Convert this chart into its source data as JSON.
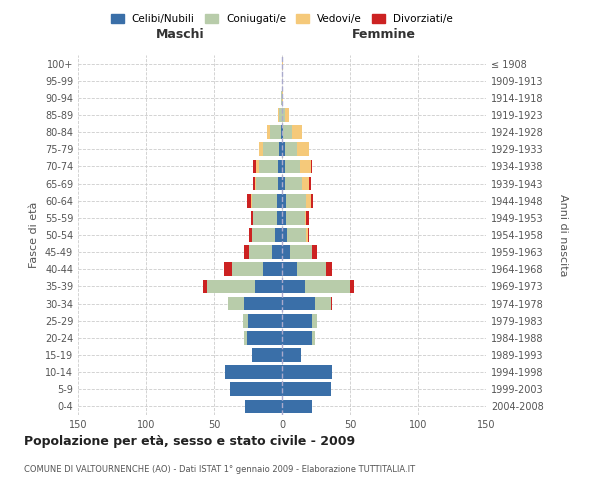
{
  "age_groups": [
    "0-4",
    "5-9",
    "10-14",
    "15-19",
    "20-24",
    "25-29",
    "30-34",
    "35-39",
    "40-44",
    "45-49",
    "50-54",
    "55-59",
    "60-64",
    "65-69",
    "70-74",
    "75-79",
    "80-84",
    "85-89",
    "90-94",
    "95-99",
    "100+"
  ],
  "birth_years": [
    "2004-2008",
    "1999-2003",
    "1994-1998",
    "1989-1993",
    "1984-1988",
    "1979-1983",
    "1974-1978",
    "1969-1973",
    "1964-1968",
    "1959-1963",
    "1954-1958",
    "1949-1953",
    "1944-1948",
    "1939-1943",
    "1934-1938",
    "1929-1933",
    "1924-1928",
    "1919-1923",
    "1914-1918",
    "1909-1913",
    "≤ 1908"
  ],
  "male": {
    "celibi": [
      27,
      38,
      42,
      22,
      26,
      25,
      28,
      20,
      14,
      7,
      5,
      4,
      4,
      3,
      3,
      2,
      1,
      0,
      0,
      0,
      0
    ],
    "coniugati": [
      0,
      0,
      0,
      0,
      2,
      4,
      12,
      35,
      23,
      17,
      17,
      17,
      18,
      16,
      14,
      12,
      8,
      2,
      1,
      0,
      0
    ],
    "vedovi": [
      0,
      0,
      0,
      0,
      0,
      0,
      0,
      0,
      0,
      0,
      0,
      0,
      1,
      1,
      2,
      3,
      2,
      1,
      0,
      0,
      0
    ],
    "divorziati": [
      0,
      0,
      0,
      0,
      0,
      0,
      0,
      3,
      6,
      4,
      2,
      2,
      3,
      1,
      2,
      0,
      0,
      0,
      0,
      0,
      0
    ]
  },
  "female": {
    "nubili": [
      22,
      36,
      37,
      14,
      22,
      22,
      24,
      17,
      11,
      6,
      4,
      3,
      3,
      2,
      2,
      2,
      1,
      0,
      0,
      0,
      0
    ],
    "coniugate": [
      0,
      0,
      0,
      0,
      2,
      4,
      12,
      33,
      21,
      16,
      14,
      14,
      15,
      13,
      11,
      9,
      6,
      2,
      0,
      0,
      0
    ],
    "vedove": [
      0,
      0,
      0,
      0,
      0,
      0,
      0,
      0,
      0,
      0,
      1,
      1,
      3,
      5,
      8,
      9,
      8,
      3,
      1,
      0,
      1
    ],
    "divorziate": [
      0,
      0,
      0,
      0,
      0,
      0,
      1,
      3,
      5,
      4,
      1,
      2,
      2,
      1,
      1,
      0,
      0,
      0,
      0,
      0,
      0
    ]
  },
  "color_celibi": "#3a6fa8",
  "color_coniugati": "#b8ccaa",
  "color_vedovi": "#f5c97a",
  "color_divorziati": "#cc2222",
  "title": "Popolazione per età, sesso e stato civile - 2009",
  "subtitle": "COMUNE DI VALTOURNENCHE (AO) - Dati ISTAT 1° gennaio 2009 - Elaborazione TUTTITALIA.IT",
  "xlabel_left": "Maschi",
  "xlabel_right": "Femmine",
  "ylabel_left": "Fasce di età",
  "ylabel_right": "Anni di nascita",
  "xlim": 150,
  "legend_labels": [
    "Celibi/Nubili",
    "Coniugati/e",
    "Vedovi/e",
    "Divorziati/e"
  ],
  "bg_color": "#ffffff",
  "grid_color": "#cccccc"
}
